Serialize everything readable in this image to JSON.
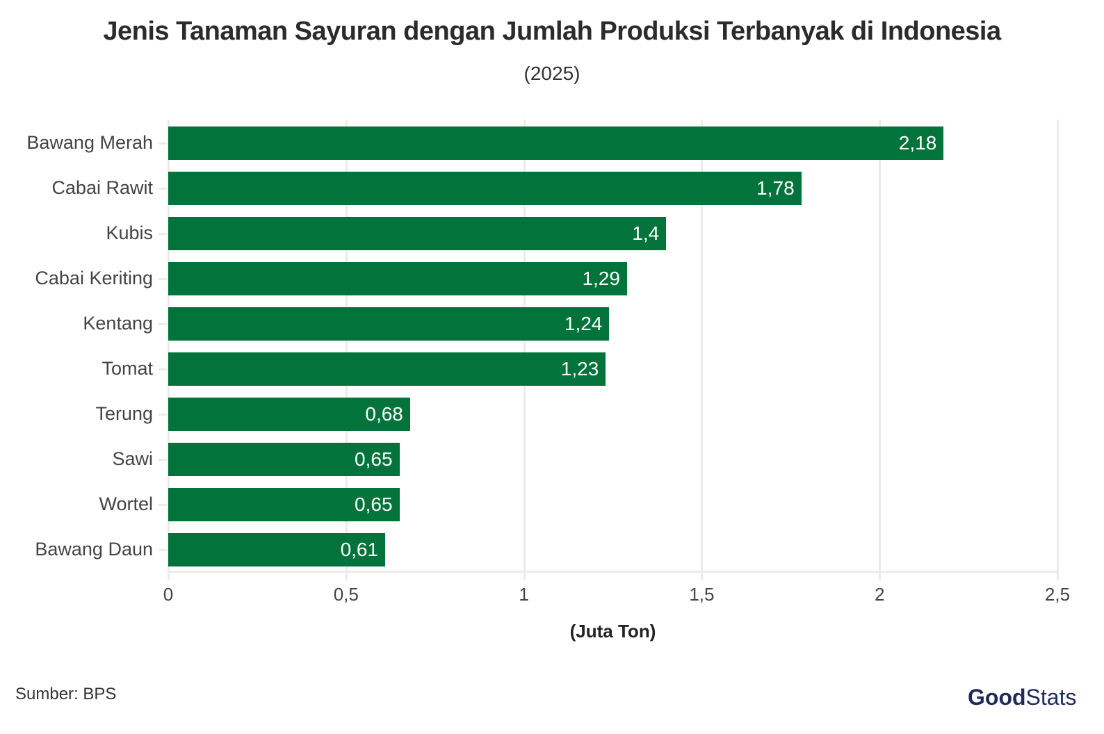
{
  "chart_data": {
    "type": "bar",
    "orientation": "horizontal",
    "title": "Jenis Tanaman Sayuran dengan Jumlah Produksi Terbanyak di Indonesia",
    "subtitle": "(2025)",
    "xlabel": "(Juta Ton)",
    "ylabel": "",
    "xlim": [
      0,
      2.5
    ],
    "x_ticks": [
      "0",
      "0,5",
      "1",
      "1,5",
      "2",
      "2,5"
    ],
    "grid": true,
    "bar_color": "#02733a",
    "categories": [
      "Bawang Merah",
      "Cabai Rawit",
      "Kubis",
      "Cabai Keriting",
      "Kentang",
      "Tomat",
      "Terung",
      "Sawi",
      "Wortel",
      "Bawang Daun"
    ],
    "values": [
      2.18,
      1.78,
      1.4,
      1.29,
      1.24,
      1.23,
      0.68,
      0.65,
      0.65,
      0.61
    ],
    "value_labels": [
      "2,18",
      "1,78",
      "1,4",
      "1,29",
      "1,24",
      "1,23",
      "0,68",
      "0,65",
      "0,65",
      "0,61"
    ]
  },
  "footer": {
    "source": "Sumber: BPS",
    "logo_bold": "Good",
    "logo_light": "Stats"
  }
}
